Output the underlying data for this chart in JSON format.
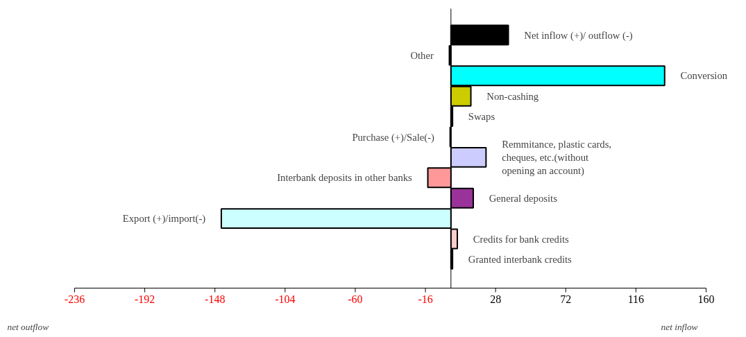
{
  "chart_data": {
    "type": "bar",
    "orientation": "horizontal",
    "categories": [
      "Net inflow (+)/ outflow (-)",
      "Other",
      "Conversion",
      "Non-cashing",
      "Swaps",
      "Purchase (+)/Sale(-)",
      "Remmitance, plastic cards, cheques, etc.(without opening an account)",
      "Interbank deposits in other banks",
      "General deposits",
      "Export (+)/import(-)",
      "Credits for bank credits",
      "Granted interbank credits"
    ],
    "values": [
      36,
      -1,
      134,
      12.5,
      1,
      -0.5,
      22,
      -14.5,
      14,
      -144,
      4,
      1
    ],
    "colors": [
      "#000000",
      "#000000",
      "#00ffff",
      "#cccc00",
      "#000000",
      "#000000",
      "#ccccff",
      "#ff9999",
      "#993399",
      "#ccffff",
      "#ffcccc",
      "#000000"
    ],
    "xlim": [
      -236,
      160
    ],
    "xticks": [
      -236,
      -192,
      -148,
      -104,
      -60,
      -16,
      28,
      72,
      116,
      160
    ],
    "tick_labels": "x",
    "grid": false,
    "annotations": [
      "net outflow",
      "net inflow"
    ]
  }
}
